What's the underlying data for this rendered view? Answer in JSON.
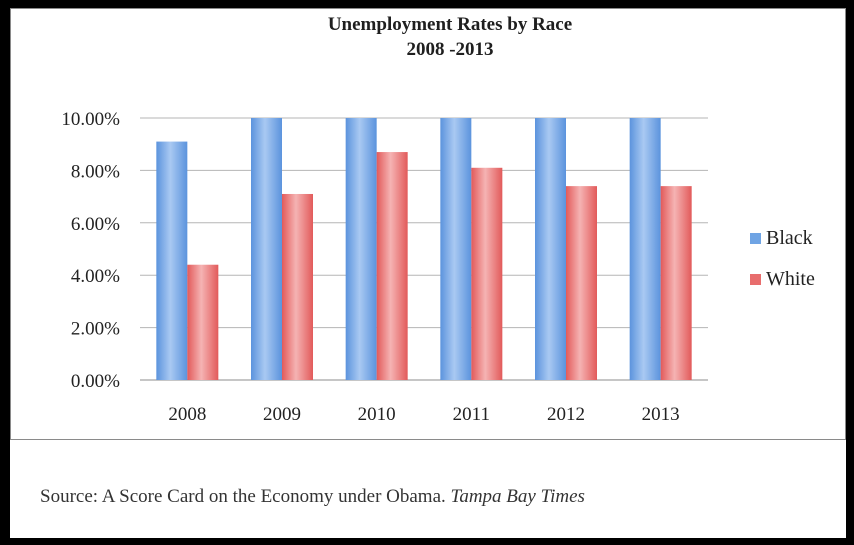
{
  "chart_data": {
    "type": "bar",
    "title": "Unemployment Rates by Race",
    "subtitle": "2008 -2013",
    "categories": [
      "2008",
      "2009",
      "2010",
      "2011",
      "2012",
      "2013"
    ],
    "series": [
      {
        "name": "Black",
        "color": "#6fa4e4",
        "values": [
          9.1,
          10.0,
          10.0,
          10.0,
          10.0,
          10.0
        ]
      },
      {
        "name": "White",
        "color": "#e86d6d",
        "values": [
          4.4,
          7.1,
          8.7,
          8.1,
          7.4,
          7.4
        ]
      }
    ],
    "yticks": [
      "0.00%",
      "2.00%",
      "4.00%",
      "6.00%",
      "8.00%",
      "10.00%"
    ],
    "ylim": [
      0,
      10
    ],
    "grid": true,
    "legend": "right"
  },
  "source": {
    "prefix": "Source:  A Score Card on the Economy under Obama.",
    "publication": "Tampa Bay Times"
  }
}
